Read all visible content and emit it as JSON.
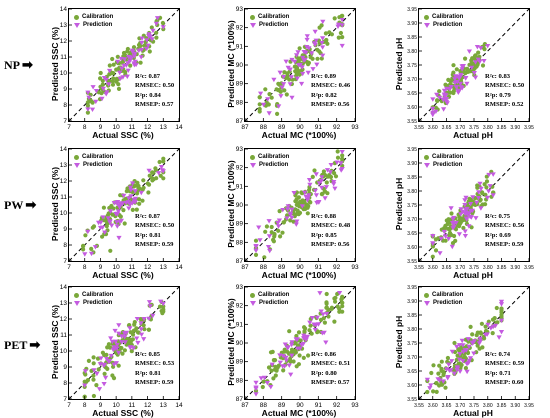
{
  "rows": [
    {
      "label": "NP"
    },
    {
      "label": "PW"
    },
    {
      "label": "PET"
    }
  ],
  "legend": {
    "calibration": "Calibration",
    "prediction": "Prediction"
  },
  "colors": {
    "calibration": "#7aa83a",
    "prediction": "#c45be0"
  },
  "chart_data": [
    {
      "type": "scatter",
      "row": "NP",
      "xlabel": "Actual SSC (%)",
      "ylabel": "Predicted SSC (%)",
      "xlim": [
        7,
        14
      ],
      "ylim": [
        7,
        14
      ],
      "xticks": [
        7,
        8,
        9,
        10,
        11,
        12,
        13,
        14
      ],
      "yticks": [
        7,
        8,
        9,
        10,
        11,
        12,
        13,
        14
      ],
      "metrics": [
        "R²c: 0.87",
        "RMSEC: 0.50",
        "R²p: 0.84",
        "RMSEP: 0.57"
      ],
      "spread": 0.5,
      "center": [
        10.5,
        10.5
      ],
      "range": [
        8.2,
        13.0
      ],
      "series": [
        {
          "name": "Calibration"
        },
        {
          "name": "Prediction"
        }
      ]
    },
    {
      "type": "scatter",
      "row": "NP",
      "xlabel": "Actual MC (*100%)",
      "ylabel": "Predicted MC (*100%)",
      "xlim": [
        87,
        93
      ],
      "ylim": [
        87,
        93
      ],
      "xticks": [
        87,
        88,
        89,
        90,
        91,
        92,
        93
      ],
      "yticks": [
        87,
        88,
        89,
        90,
        91,
        92,
        93
      ],
      "metrics": [
        "R²c: 0.89",
        "RMSEC: 0.46",
        "R²p: 0.82",
        "RMSEP: 0.56"
      ],
      "spread": 0.45,
      "center": [
        90,
        90
      ],
      "range": [
        87.8,
        92.3
      ],
      "series": [
        {
          "name": "Calibration"
        },
        {
          "name": "Prediction"
        }
      ]
    },
    {
      "type": "scatter",
      "row": "NP",
      "xlabel": "Actual pH",
      "ylabel": "Predicted pH",
      "xlim": [
        3.55,
        3.95
      ],
      "ylim": [
        3.55,
        3.95
      ],
      "xticks": [
        3.55,
        3.6,
        3.65,
        3.7,
        3.75,
        3.8,
        3.85,
        3.9,
        3.95
      ],
      "yticks": [
        3.55,
        3.6,
        3.65,
        3.7,
        3.75,
        3.8,
        3.85,
        3.9,
        3.95
      ],
      "metrics": [
        "R²c: 0.83",
        "RMSEC: 0.50",
        "R²p: 0.79",
        "RMSEP: 0.52"
      ],
      "spread": 0.025,
      "center": [
        3.7,
        3.7
      ],
      "range": [
        3.6,
        3.8
      ],
      "series": [
        {
          "name": "Calibration"
        },
        {
          "name": "Prediction"
        }
      ]
    },
    {
      "type": "scatter",
      "row": "PW",
      "xlabel": "Actual SSC (%)",
      "ylabel": "Predicted SSC (%)",
      "xlim": [
        7,
        14
      ],
      "ylim": [
        7,
        14
      ],
      "xticks": [
        7,
        8,
        9,
        10,
        11,
        12,
        13,
        14
      ],
      "yticks": [
        7,
        8,
        9,
        10,
        11,
        12,
        13,
        14
      ],
      "metrics": [
        "R²c: 0.87",
        "RMSEC: 0.50",
        "R²p: 0.81",
        "RMSEP: 0.59"
      ],
      "spread": 0.55,
      "center": [
        10.5,
        10.5
      ],
      "range": [
        7.9,
        13.0
      ],
      "series": [
        {
          "name": "Calibration"
        },
        {
          "name": "Prediction"
        }
      ]
    },
    {
      "type": "scatter",
      "row": "PW",
      "xlabel": "Actual MC (*100%)",
      "ylabel": "Predicted MC (*100%)",
      "xlim": [
        87,
        93
      ],
      "ylim": [
        87,
        93
      ],
      "xticks": [
        87,
        88,
        89,
        90,
        91,
        92,
        93
      ],
      "yticks": [
        87,
        88,
        89,
        90,
        91,
        92,
        93
      ],
      "metrics": [
        "R²c: 0.88",
        "RMSEC: 0.48",
        "R²p: 0.85",
        "RMSEP: 0.56"
      ],
      "spread": 0.5,
      "center": [
        90,
        90
      ],
      "range": [
        87.6,
        92.3
      ],
      "series": [
        {
          "name": "Calibration"
        },
        {
          "name": "Prediction"
        }
      ]
    },
    {
      "type": "scatter",
      "row": "PW",
      "xlabel": "Actual pH",
      "ylabel": "Predicted pH",
      "xlim": [
        3.55,
        3.95
      ],
      "ylim": [
        3.55,
        3.95
      ],
      "xticks": [
        3.55,
        3.6,
        3.65,
        3.7,
        3.75,
        3.8,
        3.85,
        3.9,
        3.95
      ],
      "yticks": [
        3.55,
        3.6,
        3.65,
        3.7,
        3.75,
        3.8,
        3.85,
        3.9,
        3.95
      ],
      "metrics": [
        "R²c: 0.75",
        "RMSEC: 0.56",
        "R²p: 0.69",
        "RMSEP: 0.59"
      ],
      "spread": 0.03,
      "center": [
        3.7,
        3.7
      ],
      "range": [
        3.6,
        3.82
      ],
      "series": [
        {
          "name": "Calibration"
        },
        {
          "name": "Prediction"
        }
      ]
    },
    {
      "type": "scatter",
      "row": "PET",
      "xlabel": "Actual SSC (%)",
      "ylabel": "Predicted SSC (%)",
      "xlim": [
        7,
        14
      ],
      "ylim": [
        7,
        14
      ],
      "xticks": [
        7,
        8,
        9,
        10,
        11,
        12,
        13,
        14
      ],
      "yticks": [
        7,
        8,
        9,
        10,
        11,
        12,
        13,
        14
      ],
      "metrics": [
        "R²c: 0.85",
        "RMSEC: 0.53",
        "R²p: 0.81",
        "RMSEP: 0.59"
      ],
      "spread": 0.55,
      "center": [
        10.5,
        10.5
      ],
      "range": [
        8.0,
        13.0
      ],
      "series": [
        {
          "name": "Calibration"
        },
        {
          "name": "Prediction"
        }
      ]
    },
    {
      "type": "scatter",
      "row": "PET",
      "xlabel": "Actual MC (*100%)",
      "ylabel": "Predicted MC (*100%)",
      "xlim": [
        87,
        93
      ],
      "ylim": [
        87,
        93
      ],
      "xticks": [
        87,
        88,
        89,
        90,
        91,
        92,
        93
      ],
      "yticks": [
        87,
        88,
        89,
        90,
        91,
        92,
        93
      ],
      "metrics": [
        "R²c: 0.86",
        "RMSEC: 0.51",
        "R²p: 0.80",
        "RMSEP: 0.57"
      ],
      "spread": 0.5,
      "center": [
        90,
        90
      ],
      "range": [
        87.6,
        92.3
      ],
      "series": [
        {
          "name": "Calibration"
        },
        {
          "name": "Prediction"
        }
      ]
    },
    {
      "type": "scatter",
      "row": "PET",
      "xlabel": "Actual pH",
      "ylabel": "Predicted pH",
      "xlim": [
        3.55,
        3.95
      ],
      "ylim": [
        3.55,
        3.95
      ],
      "xticks": [
        3.55,
        3.6,
        3.65,
        3.7,
        3.75,
        3.8,
        3.85,
        3.9,
        3.95
      ],
      "yticks": [
        3.55,
        3.6,
        3.65,
        3.7,
        3.75,
        3.8,
        3.85,
        3.9,
        3.95
      ],
      "metrics": [
        "R²c: 0.74",
        "RMSEC: 0.59",
        "R²p: 0.71",
        "RMSEP: 0.60"
      ],
      "spread": 0.03,
      "center": [
        3.7,
        3.7
      ],
      "range": [
        3.58,
        3.85
      ],
      "series": [
        {
          "name": "Calibration"
        },
        {
          "name": "Prediction"
        }
      ]
    }
  ]
}
